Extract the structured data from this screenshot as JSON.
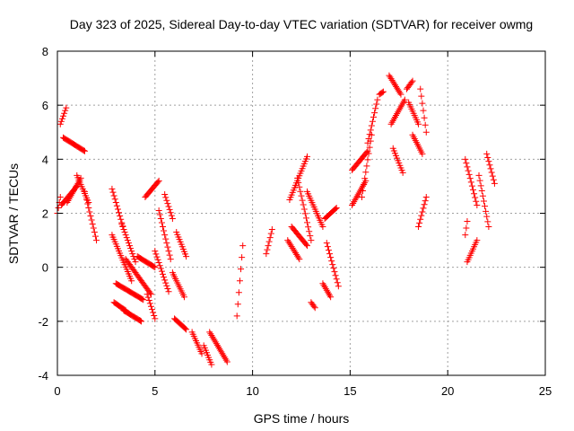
{
  "chart_data": {
    "type": "scatter",
    "title": "Day 323 of 2025, Sidereal Day-to-day VTEC variation (SDTVAR) for receiver owmg",
    "xlabel": "GPS time / hours",
    "ylabel": "SDTVAR / TECUs",
    "xlim": [
      0,
      25
    ],
    "ylim": [
      -4,
      8
    ],
    "xticks": [
      "0",
      "5",
      "10",
      "15",
      "20",
      "25"
    ],
    "yticks": [
      "-4",
      "-2",
      "0",
      "2",
      "4",
      "6",
      "8"
    ],
    "grid": true,
    "marker": "+",
    "color": "#ff0000",
    "segments": [
      {
        "x": [
          0.0,
          0.15
        ],
        "y": [
          2.0,
          2.6
        ]
      },
      {
        "x": [
          0.15,
          0.45
        ],
        "y": [
          5.3,
          5.9
        ]
      },
      {
        "x": [
          0.3,
          1.4
        ],
        "y": [
          4.8,
          4.3
        ]
      },
      {
        "x": [
          0.2,
          1.0
        ],
        "y": [
          2.3,
          3.0
        ]
      },
      {
        "x": [
          0.5,
          1.2
        ],
        "y": [
          2.4,
          3.3
        ]
      },
      {
        "x": [
          1.0,
          1.6
        ],
        "y": [
          3.4,
          2.4
        ]
      },
      {
        "x": [
          1.4,
          2.0
        ],
        "y": [
          2.8,
          1.0
        ]
      },
      {
        "x": [
          2.8,
          3.4
        ],
        "y": [
          2.9,
          1.4
        ]
      },
      {
        "x": [
          3.3,
          4.0
        ],
        "y": [
          1.6,
          0.2
        ]
      },
      {
        "x": [
          2.8,
          3.8
        ],
        "y": [
          1.2,
          -0.5
        ]
      },
      {
        "x": [
          2.9,
          3.5
        ],
        "y": [
          -1.3,
          -1.6
        ]
      },
      {
        "x": [
          3.4,
          4.3
        ],
        "y": [
          -1.6,
          -2.0
        ]
      },
      {
        "x": [
          3.0,
          4.4
        ],
        "y": [
          -0.6,
          -1.2
        ]
      },
      {
        "x": [
          3.5,
          4.8
        ],
        "y": [
          0.3,
          -1.0
        ]
      },
      {
        "x": [
          4.1,
          5.0
        ],
        "y": [
          0.4,
          0.0
        ]
      },
      {
        "x": [
          4.6,
          5.0
        ],
        "y": [
          -1.0,
          -1.9
        ]
      },
      {
        "x": [
          4.5,
          5.2
        ],
        "y": [
          2.6,
          3.2
        ]
      },
      {
        "x": [
          5.0,
          5.7
        ],
        "y": [
          0.6,
          -0.9
        ]
      },
      {
        "x": [
          5.2,
          5.8
        ],
        "y": [
          2.1,
          0.3
        ]
      },
      {
        "x": [
          5.5,
          5.9
        ],
        "y": [
          2.7,
          1.8
        ]
      },
      {
        "x": [
          5.9,
          6.5
        ],
        "y": [
          -0.2,
          -1.1
        ]
      },
      {
        "x": [
          6.1,
          6.6
        ],
        "y": [
          1.3,
          0.4
        ]
      },
      {
        "x": [
          6.0,
          6.6
        ],
        "y": [
          -1.9,
          -2.3
        ]
      },
      {
        "x": [
          6.9,
          7.4
        ],
        "y": [
          -2.4,
          -3.2
        ]
      },
      {
        "x": [
          7.5,
          7.9
        ],
        "y": [
          -2.9,
          -3.6
        ]
      },
      {
        "x": [
          7.8,
          8.7
        ],
        "y": [
          -2.4,
          -3.5
        ]
      },
      {
        "x": [
          9.2,
          9.5
        ],
        "y": [
          -1.8,
          0.8
        ]
      },
      {
        "x": [
          10.7,
          11.0
        ],
        "y": [
          0.5,
          1.4
        ]
      },
      {
        "x": [
          11.8,
          12.4
        ],
        "y": [
          1.0,
          0.3
        ]
      },
      {
        "x": [
          11.9,
          12.8
        ],
        "y": [
          2.5,
          4.1
        ]
      },
      {
        "x": [
          12.0,
          12.8
        ],
        "y": [
          1.5,
          0.8
        ]
      },
      {
        "x": [
          12.3,
          13.0
        ],
        "y": [
          3.3,
          1.0
        ]
      },
      {
        "x": [
          12.8,
          13.6
        ],
        "y": [
          2.8,
          1.5
        ]
      },
      {
        "x": [
          13.0,
          13.2
        ],
        "y": [
          -1.3,
          -1.5
        ]
      },
      {
        "x": [
          13.6,
          14.0
        ],
        "y": [
          -0.6,
          -1.1
        ]
      },
      {
        "x": [
          13.7,
          14.3
        ],
        "y": [
          1.8,
          2.2
        ]
      },
      {
        "x": [
          13.8,
          14.4
        ],
        "y": [
          0.9,
          -0.7
        ]
      },
      {
        "x": [
          15.1,
          15.8
        ],
        "y": [
          2.3,
          3.2
        ]
      },
      {
        "x": [
          15.1,
          15.9
        ],
        "y": [
          3.6,
          4.3
        ]
      },
      {
        "x": [
          15.6,
          16.1
        ],
        "y": [
          2.6,
          4.9
        ]
      },
      {
        "x": [
          15.9,
          16.4
        ],
        "y": [
          4.6,
          6.2
        ]
      },
      {
        "x": [
          16.5,
          16.7
        ],
        "y": [
          6.4,
          6.5
        ]
      },
      {
        "x": [
          17.0,
          17.6
        ],
        "y": [
          7.1,
          6.4
        ]
      },
      {
        "x": [
          17.1,
          17.8
        ],
        "y": [
          5.3,
          6.2
        ]
      },
      {
        "x": [
          17.2,
          17.7
        ],
        "y": [
          4.4,
          3.5
        ]
      },
      {
        "x": [
          17.9,
          18.2
        ],
        "y": [
          6.6,
          6.9
        ]
      },
      {
        "x": [
          18.0,
          18.5
        ],
        "y": [
          6.1,
          5.3
        ]
      },
      {
        "x": [
          18.2,
          18.7
        ],
        "y": [
          4.9,
          4.2
        ]
      },
      {
        "x": [
          18.5,
          18.9
        ],
        "y": [
          1.5,
          2.6
        ]
      },
      {
        "x": [
          18.6,
          18.9
        ],
        "y": [
          6.6,
          5.0
        ]
      },
      {
        "x": [
          20.9,
          21.5
        ],
        "y": [
          4.0,
          2.3
        ]
      },
      {
        "x": [
          20.9,
          21.0
        ],
        "y": [
          1.2,
          1.7
        ]
      },
      {
        "x": [
          21.0,
          21.5
        ],
        "y": [
          0.2,
          1.0
        ]
      },
      {
        "x": [
          21.6,
          22.1
        ],
        "y": [
          3.4,
          1.5
        ]
      },
      {
        "x": [
          22.0,
          22.4
        ],
        "y": [
          4.2,
          3.1
        ]
      }
    ]
  }
}
